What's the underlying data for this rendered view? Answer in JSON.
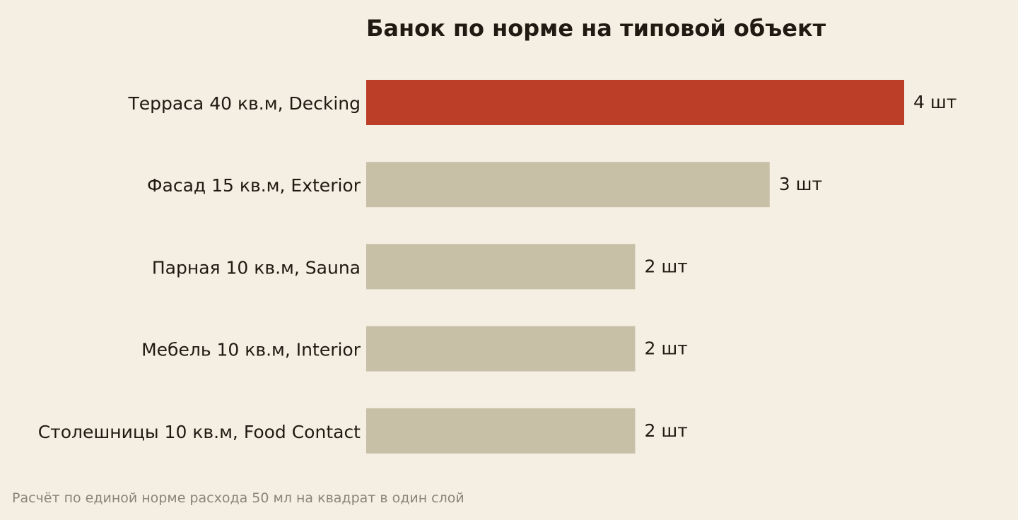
{
  "chart_data": {
    "type": "bar",
    "orientation": "horizontal",
    "title": "Банок по норме на типовой объект",
    "categories": [
      "Терраса 40 кв.м, Decking",
      "Фасад 15 кв.м, Exterior",
      "Парная 10 кв.м, Sauna",
      "Мебель 10 кв.м, Interior",
      "Столешницы 10 кв.м, Food Contact"
    ],
    "values": [
      4,
      3,
      2,
      2,
      2
    ],
    "value_labels": [
      "4 шт",
      "3 шт",
      "2 шт",
      "2 шт",
      "2 шт"
    ],
    "xlim": [
      0,
      4
    ],
    "grid": false,
    "legend": "none",
    "colors": {
      "highlight": "#bc3d28",
      "default": "#c8bfa7",
      "background": "#f5efe3",
      "text": "#1f1a12",
      "footnote": "#8a8578"
    },
    "highlight_index": 0
  },
  "footnote": "Расчёт по единой норме расхода 50 мл на квадрат в один слой"
}
